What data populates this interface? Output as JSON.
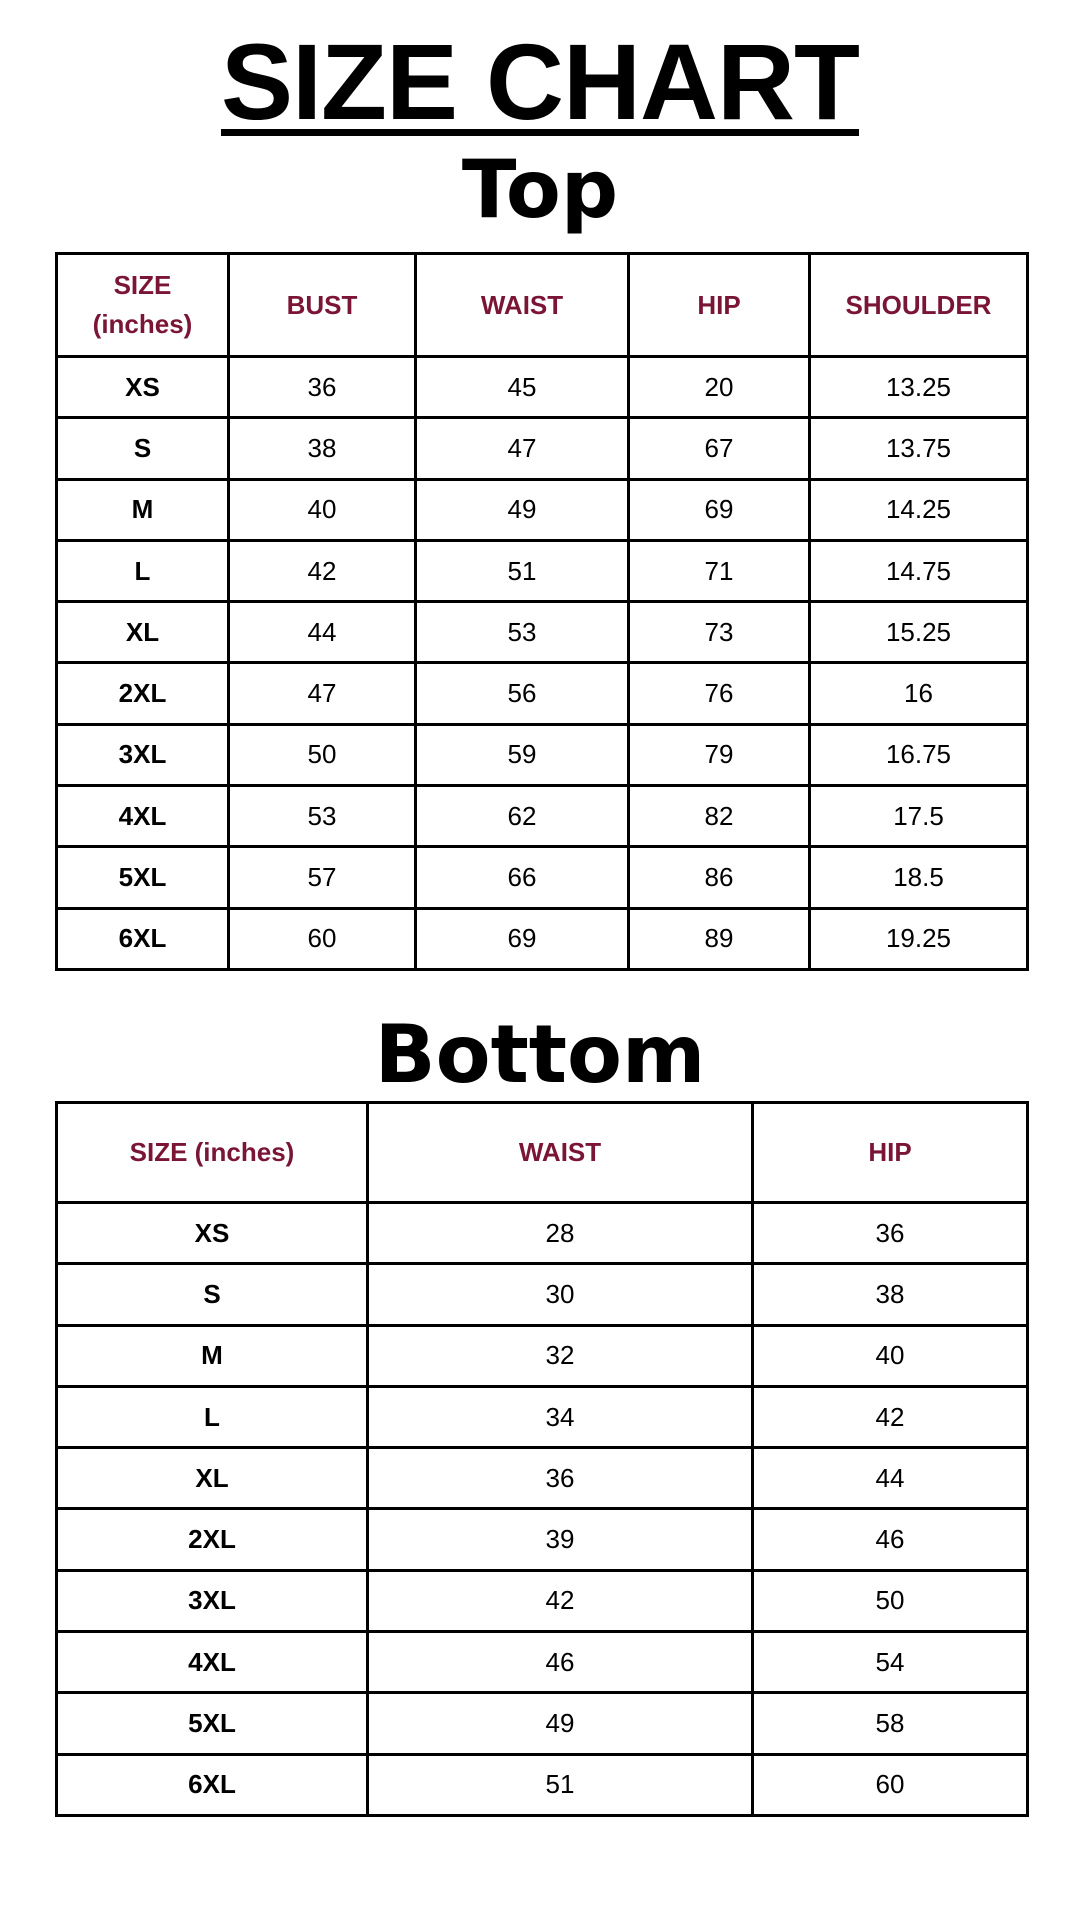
{
  "title": "SIZE CHART",
  "heading_color": "#7b1535",
  "top": {
    "heading": "Top",
    "columns": [
      "SIZE (inches)",
      "BUST",
      "WAIST",
      "HIP",
      "SHOULDER"
    ],
    "rows": [
      [
        "XS",
        "36",
        "45",
        "20",
        "13.25"
      ],
      [
        "S",
        "38",
        "47",
        "67",
        "13.75"
      ],
      [
        "M",
        "40",
        "49",
        "69",
        "14.25"
      ],
      [
        "L",
        "42",
        "51",
        "71",
        "14.75"
      ],
      [
        "XL",
        "44",
        "53",
        "73",
        "15.25"
      ],
      [
        "2XL",
        "47",
        "56",
        "76",
        "16"
      ],
      [
        "3XL",
        "50",
        "59",
        "79",
        "16.75"
      ],
      [
        "4XL",
        "53",
        "62",
        "82",
        "17.5"
      ],
      [
        "5XL",
        "57",
        "66",
        "86",
        "18.5"
      ],
      [
        "6XL",
        "60",
        "69",
        "89",
        "19.25"
      ]
    ]
  },
  "bottom": {
    "heading": "Bottom",
    "columns": [
      "SIZE (inches)",
      "WAIST",
      "HIP"
    ],
    "rows": [
      [
        "XS",
        "28",
        "36"
      ],
      [
        "S",
        "30",
        "38"
      ],
      [
        "M",
        "32",
        "40"
      ],
      [
        "L",
        "34",
        "42"
      ],
      [
        "XL",
        "36",
        "44"
      ],
      [
        "2XL",
        "39",
        "46"
      ],
      [
        "3XL",
        "42",
        "50"
      ],
      [
        "4XL",
        "46",
        "54"
      ],
      [
        "5XL",
        "49",
        "58"
      ],
      [
        "6XL",
        "51",
        "60"
      ]
    ]
  }
}
